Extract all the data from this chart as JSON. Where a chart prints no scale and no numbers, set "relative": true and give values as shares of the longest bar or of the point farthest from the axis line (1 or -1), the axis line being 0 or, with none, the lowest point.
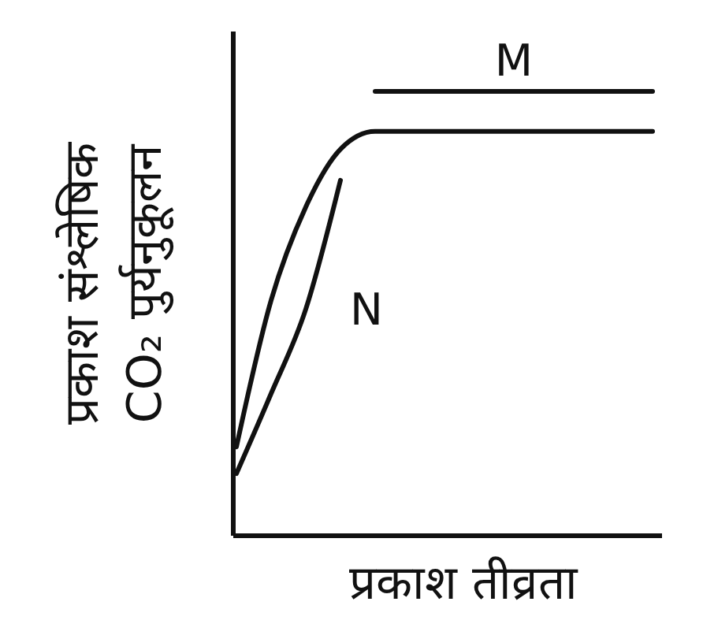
{
  "chart_data": {
    "type": "line",
    "relative": true,
    "xlabel": "प्रकाश तीव्रता",
    "ylabel": "प्रकाश संश्लेषिक\nCO₂ पुर्यनुकूलन",
    "categories": [
      null,
      null,
      null,
      null,
      null,
      null,
      null,
      null,
      null,
      null,
      null,
      null,
      null
    ],
    "series": [
      {
        "color": "#111111",
        "values": [
          0.2,
          0.53,
          0.74,
          0.87,
          0.91,
          0.91,
          0.91,
          0.91,
          0.91,
          0.91,
          0.91,
          0.91,
          0.91
        ]
      },
      {
        "name": "M",
        "color": "#111111",
        "values": [
          null,
          null,
          null,
          null,
          1,
          1,
          1,
          1,
          1,
          1,
          1,
          1,
          1
        ]
      },
      {
        "name": "N",
        "color": "#111111",
        "values": [
          0.14,
          0.32,
          0.51,
          0.8,
          null,
          null,
          null,
          null,
          null,
          null,
          null,
          null,
          null
        ]
      }
    ],
    "legend": false,
    "marker": "none",
    "line_style": "solid",
    "grid": false
  }
}
